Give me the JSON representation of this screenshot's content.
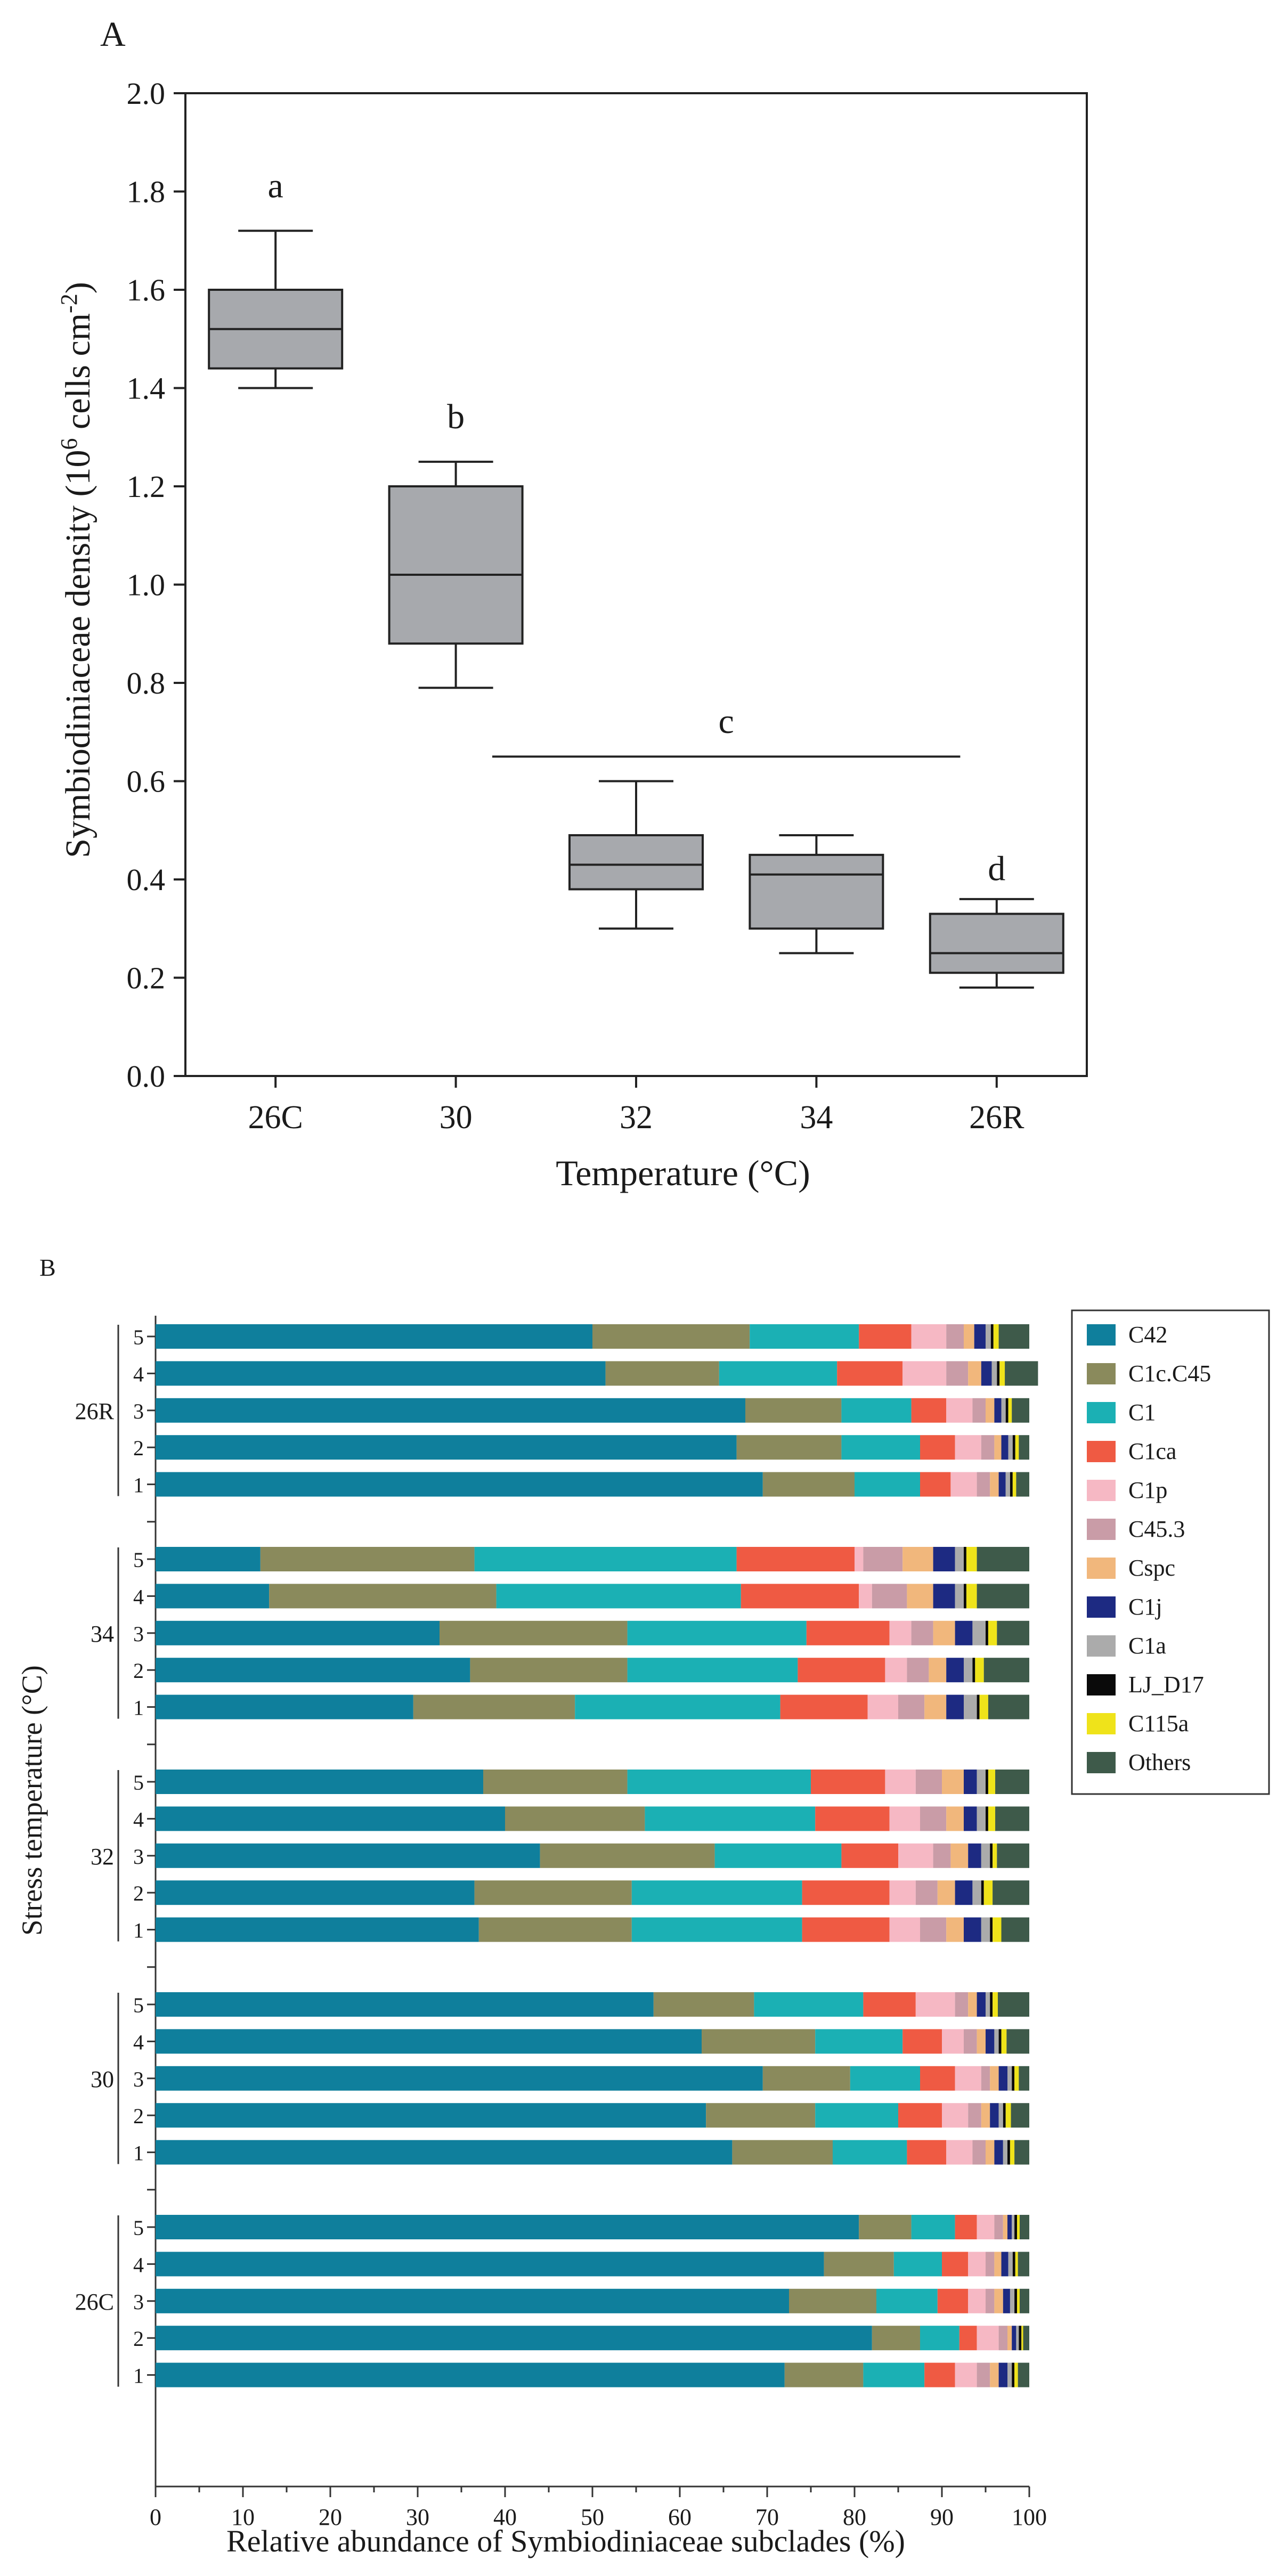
{
  "chart_data": [
    {
      "panel_label": "A",
      "type": "boxplot",
      "xlabel": "Temperature (°C)",
      "ylabel_main": "Symbiodiniaceae density (10",
      "ylabel_sup1": "6",
      "ylabel_mid": " cells cm",
      "ylabel_sup2": "-2",
      "ylabel_end": ")",
      "ylim": [
        0,
        2.0
      ],
      "yticks": [
        "0.0",
        "0.2",
        "0.4",
        "0.6",
        "0.8",
        "1.0",
        "1.2",
        "1.4",
        "1.6",
        "1.8",
        "2.0"
      ],
      "categories": [
        "26C",
        "30",
        "32",
        "34",
        "26R"
      ],
      "box_color": "#a7a9ad",
      "boxes": [
        {
          "min": 1.4,
          "q1": 1.44,
          "median": 1.52,
          "q3": 1.6,
          "max": 1.72
        },
        {
          "min": 0.79,
          "q1": 0.88,
          "median": 1.02,
          "q3": 1.2,
          "max": 1.25
        },
        {
          "min": 0.3,
          "q1": 0.38,
          "median": 0.43,
          "q3": 0.49,
          "max": 0.6
        },
        {
          "min": 0.25,
          "q1": 0.3,
          "median": 0.41,
          "q3": 0.45,
          "max": 0.49
        },
        {
          "min": 0.18,
          "q1": 0.21,
          "median": 0.25,
          "q3": 0.33,
          "max": 0.36
        }
      ],
      "significance": [
        {
          "label": "a",
          "categories": [
            0,
            0
          ],
          "y": 1.81,
          "line": false
        },
        {
          "label": "b",
          "categories": [
            1,
            1
          ],
          "y": 1.34,
          "line": false
        },
        {
          "label": "c",
          "categories": [
            2,
            3
          ],
          "y": 0.72,
          "line": true,
          "line_y": 0.65
        },
        {
          "label": "d",
          "categories": [
            4,
            4
          ],
          "y": 0.42,
          "line": false
        }
      ]
    },
    {
      "panel_label": "B",
      "type": "stacked_bar_horizontal",
      "xlabel": "Relative abundance of Symbiodiniaceae subclades (%)",
      "ylabel": "Stress temperature (°C)",
      "xlim": [
        0,
        100
      ],
      "xticks": [
        "0",
        "10",
        "20",
        "30",
        "40",
        "50",
        "60",
        "70",
        "80",
        "90",
        "100"
      ],
      "subclades": [
        {
          "name": "C42",
          "color": "#0f7f9c"
        },
        {
          "name": "C1c.C45",
          "color": "#8a8a5c"
        },
        {
          "name": "C1",
          "color": "#1bb0b4"
        },
        {
          "name": "C1ca",
          "color": "#ef5a43"
        },
        {
          "name": "C1p",
          "color": "#f6b8c4"
        },
        {
          "name": "C45.3",
          "color": "#c99ca7"
        },
        {
          "name": "Cspc",
          "color": "#f1b77c"
        },
        {
          "name": "C1j",
          "color": "#1d2a82"
        },
        {
          "name": "C1a",
          "color": "#ababab"
        },
        {
          "name": "LJ_D17",
          "color": "#0a0a0a"
        },
        {
          "name": "C115a",
          "color": "#efe31a"
        },
        {
          "name": "Others",
          "color": "#3e5a4a"
        }
      ],
      "groups": [
        {
          "name": "26R",
          "samples": [
            {
              "label": "5",
              "values": [
                50.0,
                18.0,
                12.5,
                6.0,
                4.0,
                2.0,
                1.2,
                1.3,
                0.6,
                0.3,
                0.6,
                3.5
              ]
            },
            {
              "label": "4",
              "values": [
                51.5,
                13.0,
                13.5,
                7.5,
                5.0,
                2.5,
                1.5,
                1.2,
                0.6,
                0.3,
                0.6,
                3.8
              ]
            },
            {
              "label": "3",
              "values": [
                67.5,
                11.0,
                8.0,
                4.0,
                3.0,
                1.5,
                1.0,
                0.8,
                0.5,
                0.3,
                0.4,
                2.0
              ]
            },
            {
              "label": "2",
              "values": [
                66.5,
                12.0,
                9.0,
                4.0,
                3.0,
                1.5,
                0.8,
                0.8,
                0.5,
                0.3,
                0.4,
                1.2
              ]
            },
            {
              "label": "1",
              "values": [
                69.5,
                10.5,
                7.5,
                3.5,
                3.0,
                1.5,
                1.0,
                0.8,
                0.5,
                0.3,
                0.4,
                1.5
              ]
            }
          ]
        },
        {
          "name": "34",
          "samples": [
            {
              "label": "5",
              "values": [
                12.0,
                24.5,
                30.0,
                13.5,
                1.0,
                4.5,
                3.5,
                2.5,
                1.0,
                0.3,
                1.2,
                6.0
              ]
            },
            {
              "label": "4",
              "values": [
                13.0,
                26.0,
                28.0,
                13.5,
                1.5,
                4.0,
                3.0,
                2.5,
                1.0,
                0.3,
                1.2,
                6.0
              ]
            },
            {
              "label": "3",
              "values": [
                32.5,
                21.5,
                20.5,
                9.5,
                2.5,
                2.5,
                2.5,
                2.0,
                1.5,
                0.3,
                1.0,
                3.7
              ]
            },
            {
              "label": "2",
              "values": [
                36.0,
                18.0,
                19.5,
                10.0,
                2.5,
                2.5,
                2.0,
                2.0,
                1.0,
                0.3,
                1.0,
                5.2
              ]
            },
            {
              "label": "1",
              "values": [
                29.5,
                18.5,
                23.5,
                10.0,
                3.5,
                3.0,
                2.5,
                2.0,
                1.5,
                0.3,
                1.0,
                4.7
              ]
            }
          ]
        },
        {
          "name": "32",
          "samples": [
            {
              "label": "5",
              "values": [
                37.5,
                16.5,
                21.0,
                8.5,
                3.5,
                3.0,
                2.5,
                1.5,
                1.0,
                0.3,
                0.8,
                3.9
              ]
            },
            {
              "label": "4",
              "values": [
                40.0,
                16.0,
                19.5,
                8.5,
                3.5,
                3.0,
                2.0,
                1.5,
                1.0,
                0.3,
                0.8,
                3.9
              ]
            },
            {
              "label": "3",
              "values": [
                44.0,
                20.0,
                14.5,
                6.5,
                4.0,
                2.0,
                2.0,
                1.5,
                1.0,
                0.3,
                0.5,
                3.7
              ]
            },
            {
              "label": "2",
              "values": [
                36.5,
                18.0,
                19.5,
                10.0,
                3.0,
                2.5,
                2.0,
                2.0,
                1.0,
                0.3,
                1.0,
                4.2
              ]
            },
            {
              "label": "1",
              "values": [
                37.0,
                17.5,
                19.5,
                10.0,
                3.5,
                3.0,
                2.0,
                2.0,
                1.0,
                0.3,
                1.0,
                3.2
              ]
            }
          ]
        },
        {
          "name": "30",
          "samples": [
            {
              "label": "5",
              "values": [
                57.0,
                11.5,
                12.5,
                6.0,
                4.5,
                1.5,
                1.0,
                1.0,
                0.5,
                0.3,
                0.6,
                3.6
              ]
            },
            {
              "label": "4",
              "values": [
                62.5,
                13.0,
                10.0,
                4.5,
                2.5,
                1.5,
                1.0,
                1.0,
                0.5,
                0.3,
                0.6,
                2.6
              ]
            },
            {
              "label": "3",
              "values": [
                69.5,
                10.0,
                8.0,
                4.0,
                3.0,
                1.0,
                1.0,
                1.0,
                0.5,
                0.3,
                0.5,
                1.2
              ]
            },
            {
              "label": "2",
              "values": [
                63.0,
                12.5,
                9.5,
                5.0,
                3.0,
                1.5,
                1.0,
                1.0,
                0.5,
                0.3,
                0.6,
                2.1
              ]
            },
            {
              "label": "1",
              "values": [
                66.0,
                11.5,
                8.5,
                4.5,
                3.0,
                1.5,
                1.0,
                1.0,
                0.5,
                0.3,
                0.5,
                1.7
              ]
            }
          ]
        },
        {
          "name": "26C",
          "samples": [
            {
              "label": "5",
              "values": [
                80.5,
                6.0,
                5.0,
                2.5,
                2.0,
                1.0,
                0.5,
                0.5,
                0.3,
                0.3,
                0.3,
                1.1
              ]
            },
            {
              "label": "4",
              "values": [
                76.5,
                8.0,
                5.5,
                3.0,
                2.0,
                1.0,
                0.8,
                0.8,
                0.5,
                0.3,
                0.3,
                1.3
              ]
            },
            {
              "label": "3",
              "values": [
                72.5,
                10.0,
                7.0,
                3.5,
                2.0,
                1.0,
                1.0,
                0.8,
                0.5,
                0.3,
                0.3,
                1.1
              ]
            },
            {
              "label": "2",
              "values": [
                82.0,
                5.5,
                4.5,
                2.0,
                2.5,
                1.0,
                0.5,
                0.5,
                0.3,
                0.3,
                0.2,
                0.7
              ]
            },
            {
              "label": "1",
              "values": [
                72.0,
                9.0,
                7.0,
                3.5,
                2.5,
                1.5,
                1.0,
                1.0,
                0.5,
                0.3,
                0.4,
                1.3
              ]
            }
          ]
        }
      ]
    }
  ]
}
